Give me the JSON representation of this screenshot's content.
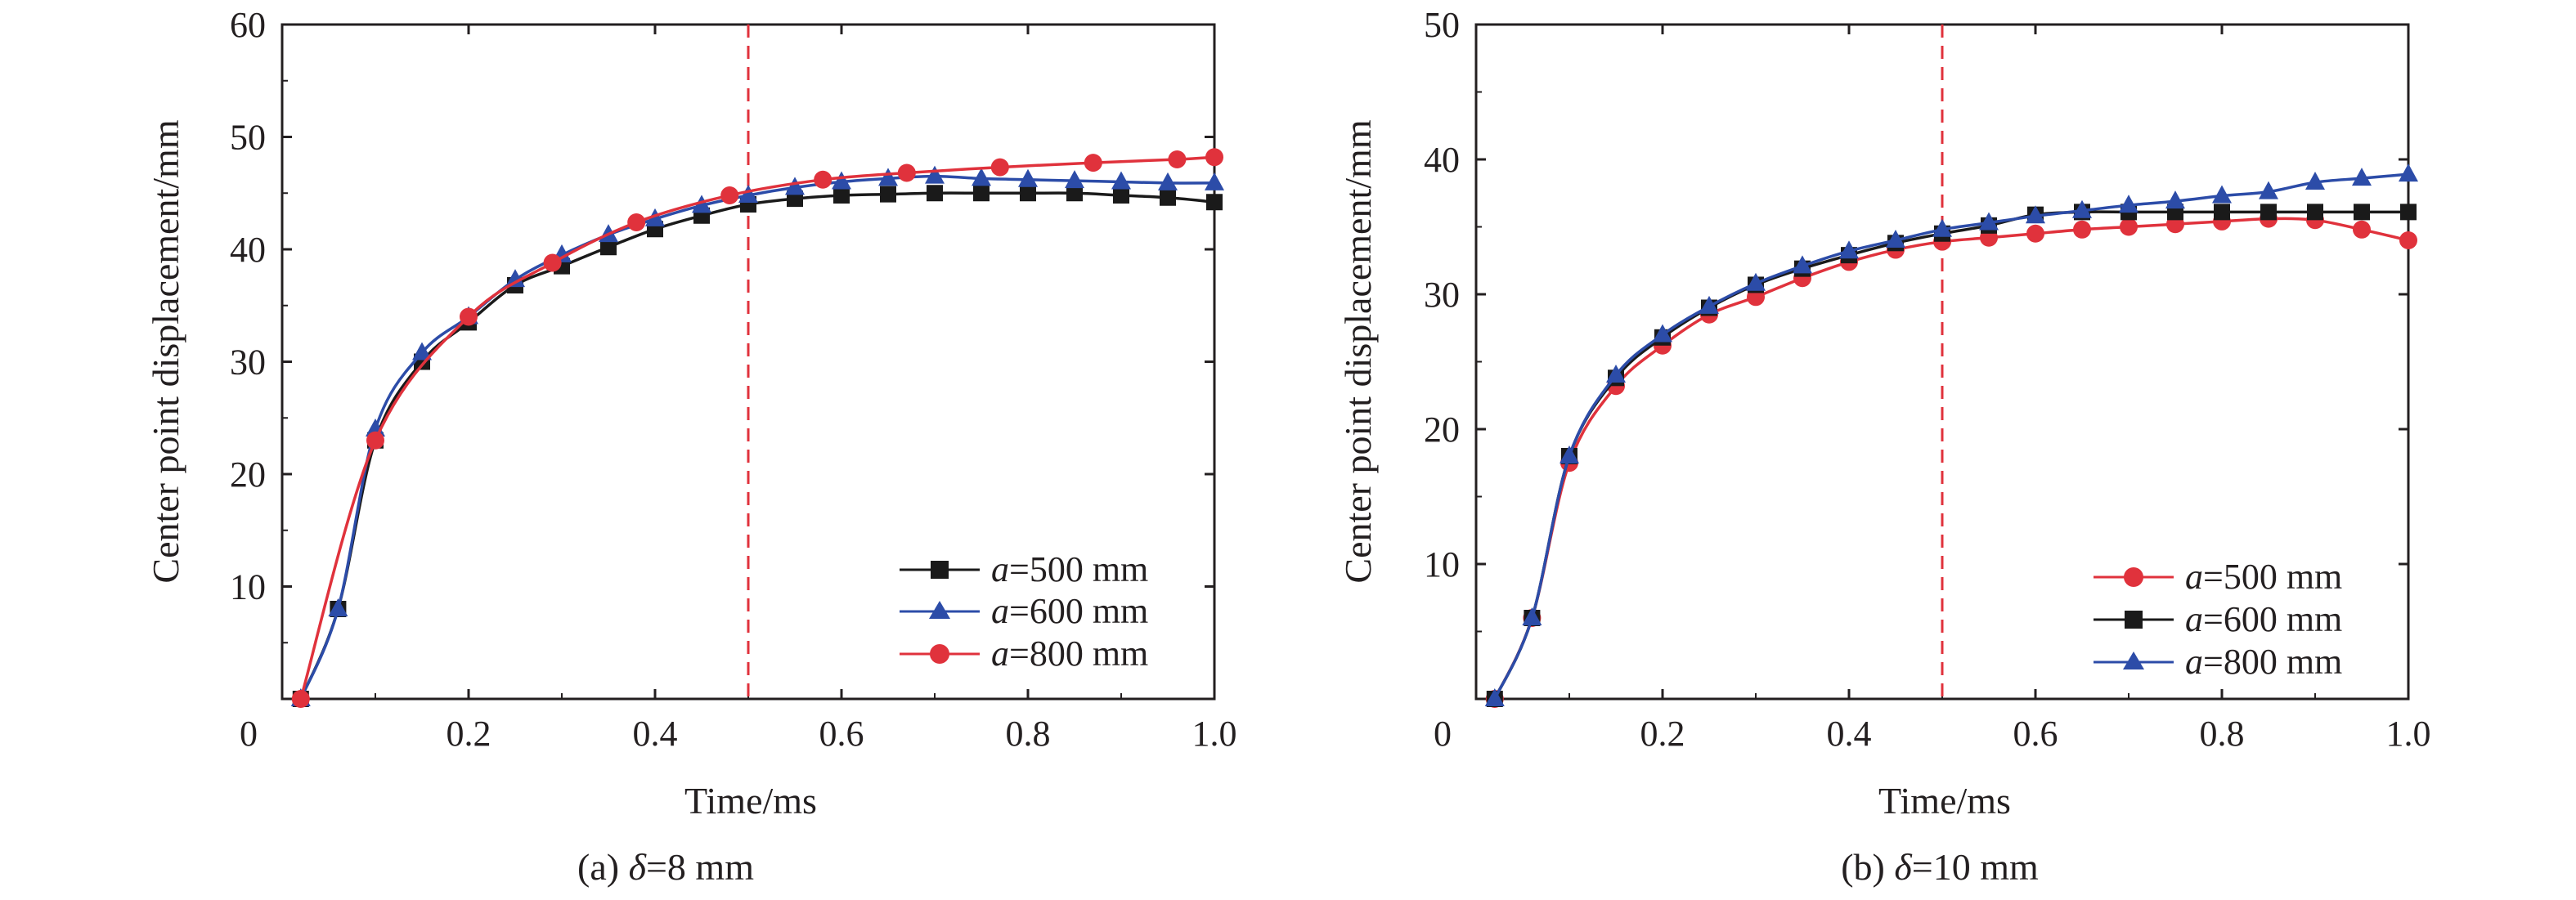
{
  "figure": {
    "panels": [
      {
        "caption": {
          "prefix": "(a) ",
          "symbol": "δ",
          "rest": "=8 mm"
        },
        "legend": [
          {
            "prefix": "a",
            "text": "=500 mm",
            "color": "#1a1a1a",
            "marker": "square"
          },
          {
            "prefix": "a",
            "text": "=600 mm",
            "color": "#2c4ca8",
            "marker": "triangle"
          },
          {
            "prefix": "a",
            "text": "=800 mm",
            "color": "#e0323c",
            "marker": "circle"
          }
        ]
      },
      {
        "caption": {
          "prefix": "(b) ",
          "symbol": "δ",
          "rest": "=10 mm"
        },
        "legend": [
          {
            "prefix": "a",
            "text": "=500 mm",
            "color": "#e0323c",
            "marker": "circle"
          },
          {
            "prefix": "a",
            "text": "=600 mm",
            "color": "#1a1a1a",
            "marker": "square"
          },
          {
            "prefix": "a",
            "text": "=800 mm",
            "color": "#2c4ca8",
            "marker": "triangle"
          }
        ]
      }
    ]
  },
  "chart_data": [
    {
      "type": "line",
      "title": "(a) δ=8 mm",
      "xlabel": "Time/ms",
      "ylabel": "Center point displacement/mm",
      "xlim": [
        0,
        1.0
      ],
      "ylim": [
        0,
        60
      ],
      "xticks": [
        0,
        0.2,
        0.4,
        0.6,
        0.8,
        1.0
      ],
      "xtick_labels": [
        "0",
        "0.2",
        "0.4",
        "0.6",
        "0.8",
        "1.0"
      ],
      "yticks": [
        10,
        20,
        30,
        40,
        50,
        60
      ],
      "ytick_labels": [
        "10",
        "20",
        "30",
        "40",
        "50",
        "60"
      ],
      "origin_label": "0",
      "grid": false,
      "legend_position": "bottom-right",
      "reference_line": {
        "x": 0.5,
        "color": "#e0323c",
        "style": "dashed"
      },
      "series": [
        {
          "name": "a=500 mm",
          "color": "#1a1a1a",
          "marker": "square",
          "x": [
            0.02,
            0.06,
            0.1,
            0.15,
            0.2,
            0.25,
            0.3,
            0.35,
            0.4,
            0.45,
            0.5,
            0.55,
            0.6,
            0.65,
            0.7,
            0.75,
            0.8,
            0.85,
            0.9,
            0.95,
            1.0
          ],
          "y": [
            0,
            8,
            23,
            30,
            33.5,
            36.8,
            38.5,
            40.2,
            41.8,
            43,
            44,
            44.5,
            44.8,
            44.9,
            45,
            45,
            45,
            45,
            44.8,
            44.6,
            44.2
          ]
        },
        {
          "name": "a=600 mm",
          "color": "#2c4ca8",
          "marker": "triangle",
          "x": [
            0.02,
            0.06,
            0.1,
            0.15,
            0.2,
            0.25,
            0.3,
            0.35,
            0.4,
            0.45,
            0.5,
            0.55,
            0.6,
            0.65,
            0.7,
            0.75,
            0.8,
            0.85,
            0.9,
            0.95,
            1.0
          ],
          "y": [
            0,
            8,
            24,
            30.8,
            34,
            37.3,
            39.5,
            41.3,
            42.7,
            43.9,
            44.8,
            45.5,
            46,
            46.3,
            46.5,
            46.3,
            46.2,
            46.1,
            46,
            45.9,
            45.9
          ]
        },
        {
          "name": "a=800 mm",
          "color": "#e0323c",
          "marker": "circle",
          "x": [
            0.02,
            0.1,
            0.2,
            0.29,
            0.38,
            0.48,
            0.58,
            0.67,
            0.77,
            0.87,
            0.96,
            1.0
          ],
          "y": [
            0,
            23,
            34,
            38.8,
            42.4,
            44.8,
            46.2,
            46.8,
            47.3,
            47.7,
            48,
            48.2
          ]
        }
      ]
    },
    {
      "type": "line",
      "title": "(b) δ=10 mm",
      "xlabel": "Time/ms",
      "ylabel": "Center point displacement/mm",
      "xlim": [
        0,
        1.0
      ],
      "ylim": [
        0,
        50
      ],
      "xticks": [
        0,
        0.2,
        0.4,
        0.6,
        0.8,
        1.0
      ],
      "xtick_labels": [
        "0",
        "0.2",
        "0.4",
        "0.6",
        "0.8",
        "1.0"
      ],
      "yticks": [
        10,
        20,
        30,
        40,
        50
      ],
      "ytick_labels": [
        "10",
        "20",
        "30",
        "40",
        "50"
      ],
      "origin_label": "0",
      "grid": false,
      "legend_position": "bottom-right",
      "reference_line": {
        "x": 0.5,
        "color": "#e0323c",
        "style": "dashed"
      },
      "series": [
        {
          "name": "a=500 mm",
          "color": "#e0323c",
          "marker": "circle",
          "x": [
            0.02,
            0.06,
            0.1,
            0.15,
            0.2,
            0.25,
            0.3,
            0.35,
            0.4,
            0.45,
            0.5,
            0.55,
            0.6,
            0.65,
            0.7,
            0.75,
            0.8,
            0.85,
            0.9,
            0.95,
            1.0
          ],
          "y": [
            0,
            6,
            17.5,
            23.2,
            26.2,
            28.5,
            29.8,
            31.2,
            32.4,
            33.3,
            33.9,
            34.2,
            34.5,
            34.8,
            35,
            35.2,
            35.4,
            35.6,
            35.5,
            34.8,
            34
          ]
        },
        {
          "name": "a=600 mm",
          "color": "#1a1a1a",
          "marker": "square",
          "x": [
            0.02,
            0.06,
            0.1,
            0.15,
            0.2,
            0.25,
            0.3,
            0.35,
            0.4,
            0.45,
            0.5,
            0.55,
            0.6,
            0.65,
            0.7,
            0.75,
            0.8,
            0.85,
            0.9,
            0.95,
            1.0
          ],
          "y": [
            0,
            6,
            18,
            23.8,
            26.8,
            29,
            30.7,
            31.9,
            32.9,
            33.8,
            34.5,
            35.1,
            35.9,
            36.1,
            36.1,
            36.1,
            36.1,
            36.1,
            36.1,
            36.1,
            36.1
          ]
        },
        {
          "name": "a=800 mm",
          "color": "#2c4ca8",
          "marker": "triangle",
          "x": [
            0.02,
            0.06,
            0.1,
            0.15,
            0.2,
            0.25,
            0.3,
            0.35,
            0.4,
            0.45,
            0.5,
            0.55,
            0.6,
            0.65,
            0.7,
            0.75,
            0.8,
            0.85,
            0.9,
            0.95,
            1.0
          ],
          "y": [
            0,
            6,
            18,
            24,
            27,
            29.1,
            30.8,
            32.1,
            33.2,
            34,
            34.8,
            35.3,
            35.8,
            36.2,
            36.6,
            36.9,
            37.3,
            37.6,
            38.3,
            38.6,
            38.9
          ]
        }
      ]
    }
  ]
}
